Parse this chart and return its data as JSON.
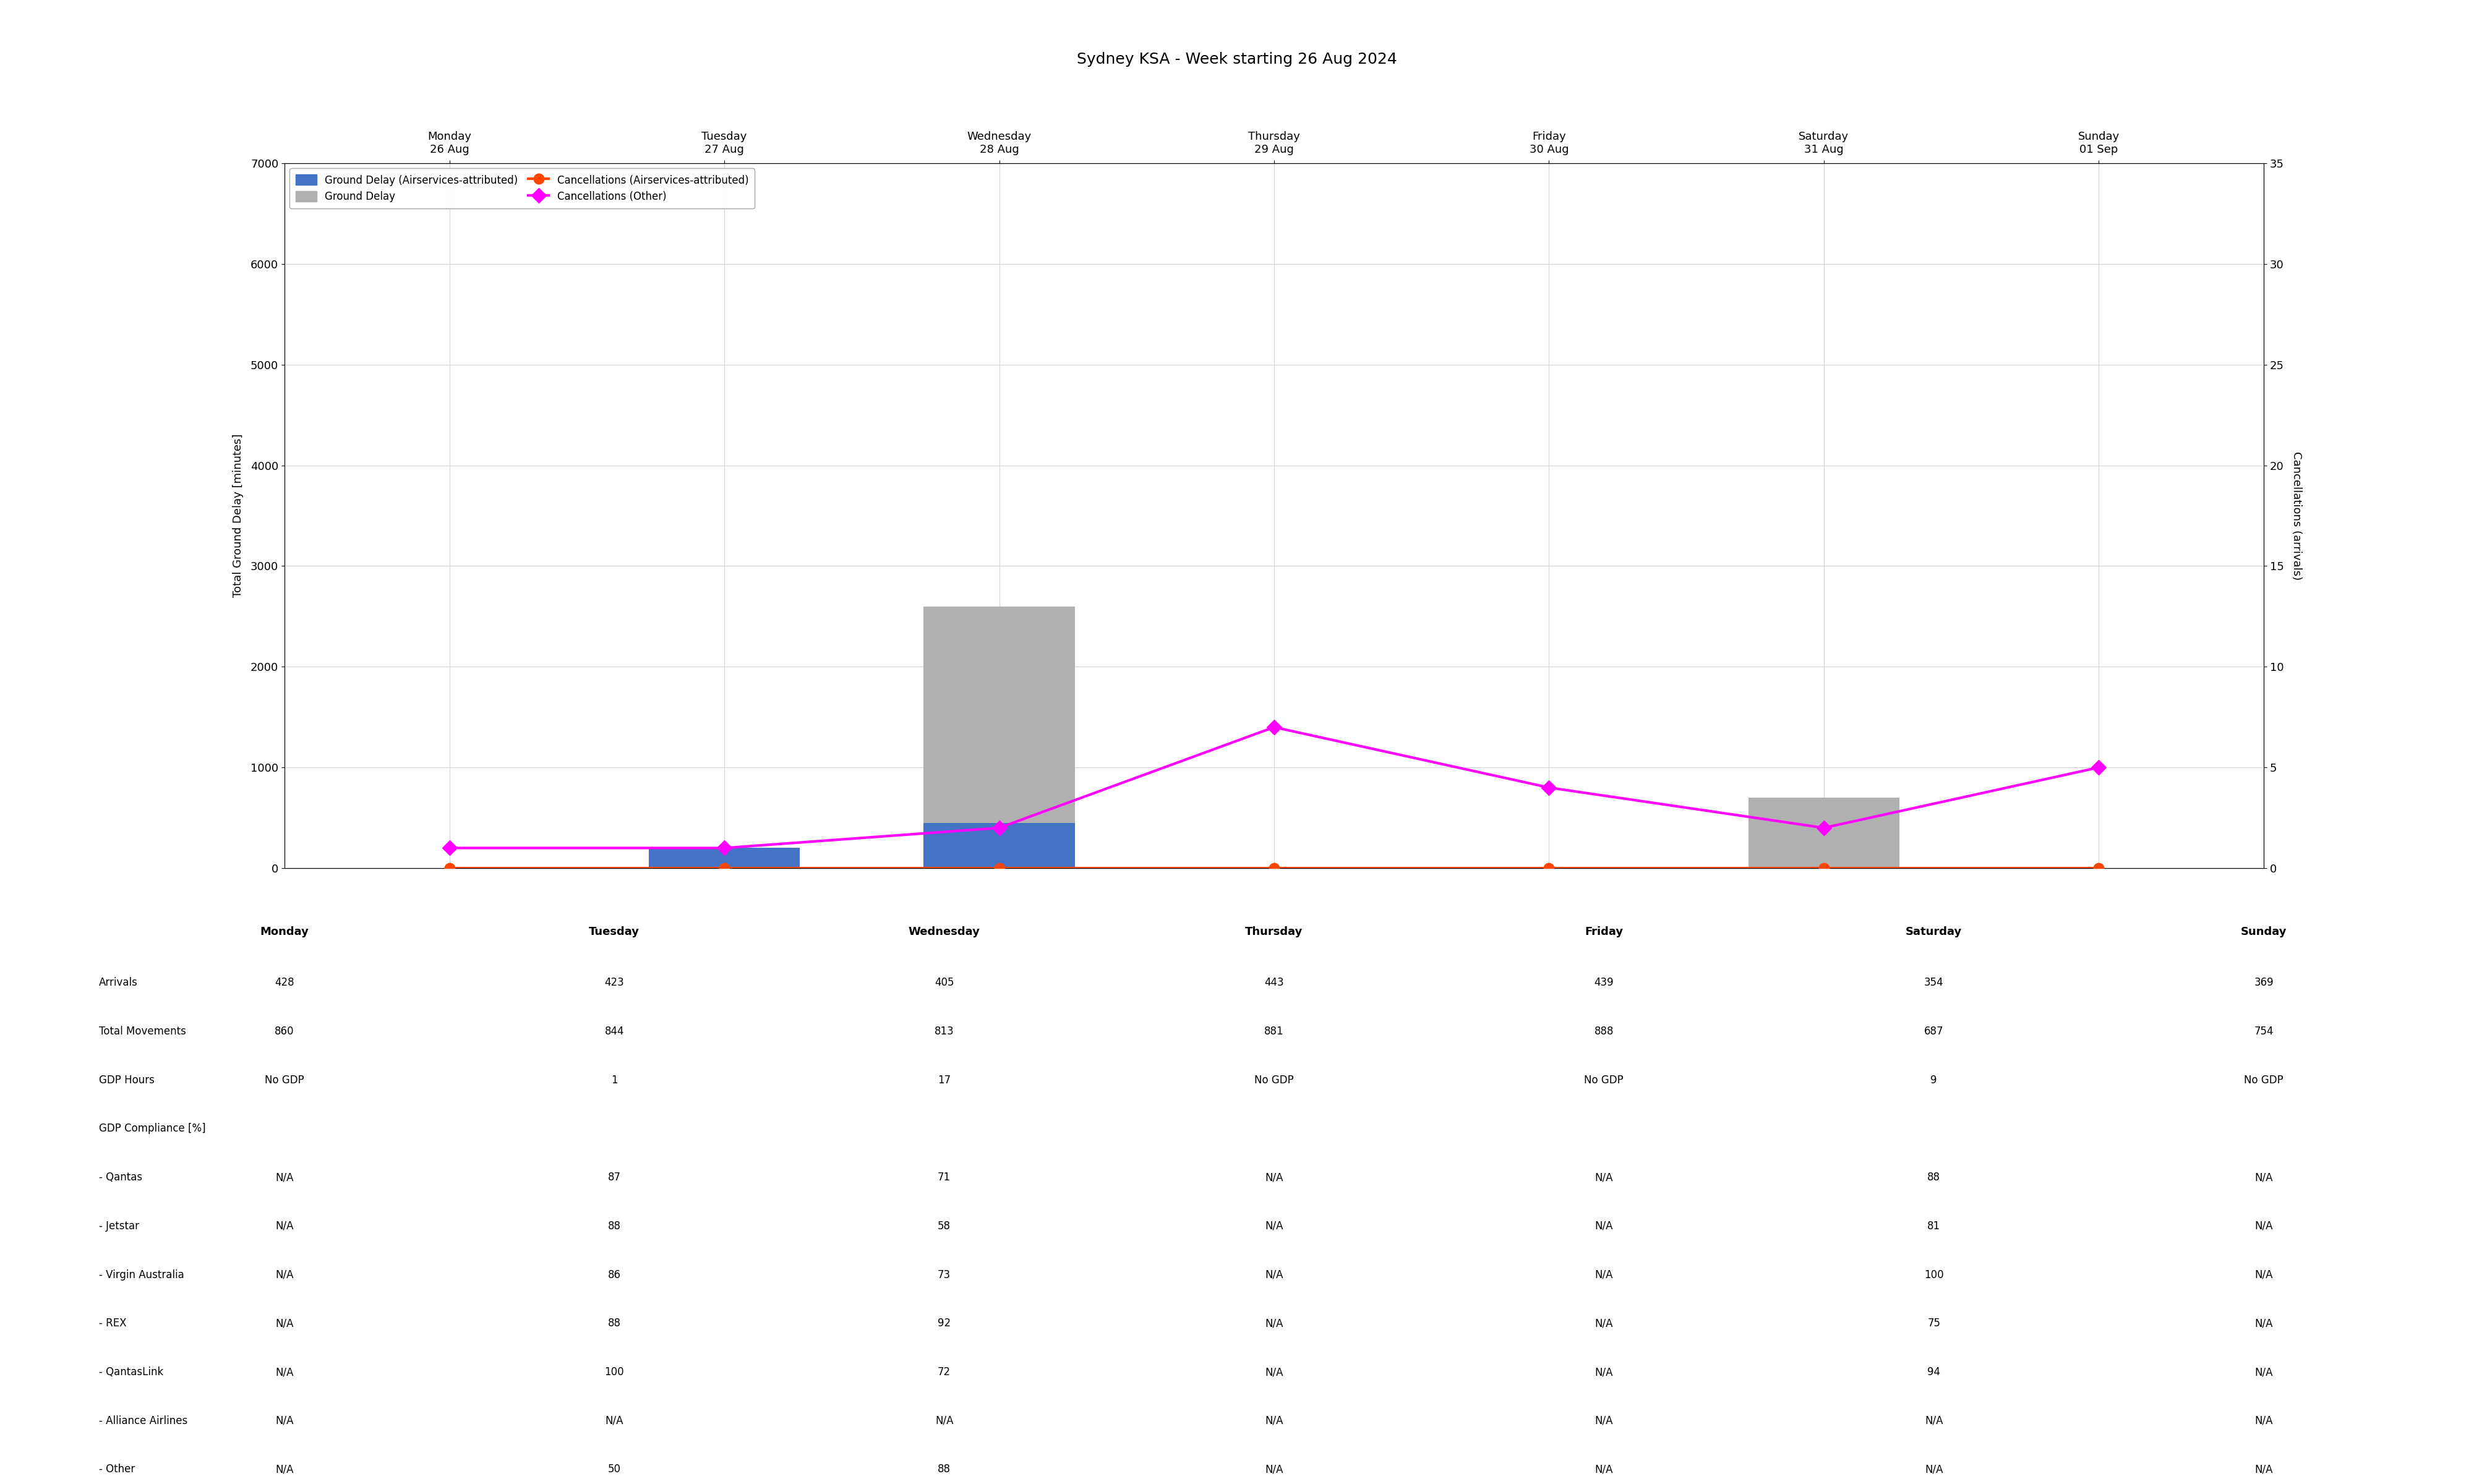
{
  "title": "Sydney KSA - Week starting 26 Aug 2024",
  "days": [
    "Monday\n26 Aug",
    "Tuesday\n27 Aug",
    "Wednesday\n28 Aug",
    "Thursday\n29 Aug",
    "Friday\n30 Aug",
    "Saturday\n31 Aug",
    "Sunday\n01 Sep"
  ],
  "days_short": [
    "Monday",
    "Tuesday",
    "Wednesday",
    "Thursday",
    "Friday",
    "Saturday",
    "Sunday"
  ],
  "ground_delay_attributed": [
    0,
    200,
    450,
    0,
    0,
    0,
    0
  ],
  "ground_delay_total": [
    0,
    200,
    2600,
    0,
    0,
    700,
    0
  ],
  "cancellations_attributed": [
    0,
    0,
    0,
    0,
    0,
    0,
    0
  ],
  "cancellations_other": [
    1,
    1,
    2,
    7,
    4,
    2,
    5
  ],
  "ylim_left": [
    0,
    7000
  ],
  "ylim_right": [
    0,
    35
  ],
  "yticks_left": [
    0,
    1000,
    2000,
    3000,
    4000,
    5000,
    6000,
    7000
  ],
  "yticks_right": [
    0,
    5,
    10,
    15,
    20,
    25,
    30,
    35
  ],
  "ylabel_left": "Total Ground Delay [minutes]",
  "ylabel_right": "Cancellations (arrivals)",
  "bar_color_attributed": "#4472C4",
  "bar_color_total": "#B0B0B0",
  "line_color_attributed": "#FF4500",
  "line_color_other": "#FF00FF",
  "marker_attributed": "o",
  "marker_other": "D",
  "table_rows": [
    "Arrivals",
    "Total Movements",
    "GDP Hours",
    "GDP Compliance [%]",
    "- Qantas",
    "- Jetstar",
    "- Virgin Australia",
    "- REX",
    "- QantasLink",
    "- Alliance Airlines",
    "- Other"
  ],
  "table_data": {
    "Arrivals": [
      "428",
      "423",
      "405",
      "443",
      "439",
      "354",
      "369"
    ],
    "Total Movements": [
      "860",
      "844",
      "813",
      "881",
      "888",
      "687",
      "754"
    ],
    "GDP Hours": [
      "No GDP",
      "1",
      "17",
      "No GDP",
      "No GDP",
      "9",
      "No GDP"
    ],
    "GDP Compliance [%]": [
      "",
      "",
      "",
      "",
      "",
      "",
      ""
    ],
    "- Qantas": [
      "N/A",
      "87",
      "71",
      "N/A",
      "N/A",
      "88",
      "N/A"
    ],
    "- Jetstar": [
      "N/A",
      "88",
      "58",
      "N/A",
      "N/A",
      "81",
      "N/A"
    ],
    "- Virgin Australia": [
      "N/A",
      "86",
      "73",
      "N/A",
      "N/A",
      "100",
      "N/A"
    ],
    "- REX": [
      "N/A",
      "88",
      "92",
      "N/A",
      "N/A",
      "75",
      "N/A"
    ],
    "- QantasLink": [
      "N/A",
      "100",
      "72",
      "N/A",
      "N/A",
      "94",
      "N/A"
    ],
    "- Alliance Airlines": [
      "N/A",
      "N/A",
      "N/A",
      "N/A",
      "N/A",
      "N/A",
      "N/A"
    ],
    "- Other": [
      "N/A",
      "50",
      "88",
      "N/A",
      "N/A",
      "N/A",
      "N/A"
    ]
  },
  "title_fontsize": 18,
  "tick_fontsize": 13,
  "legend_fontsize": 12,
  "ylabel_fontsize": 13,
  "table_header_fontsize": 13,
  "table_data_fontsize": 12
}
